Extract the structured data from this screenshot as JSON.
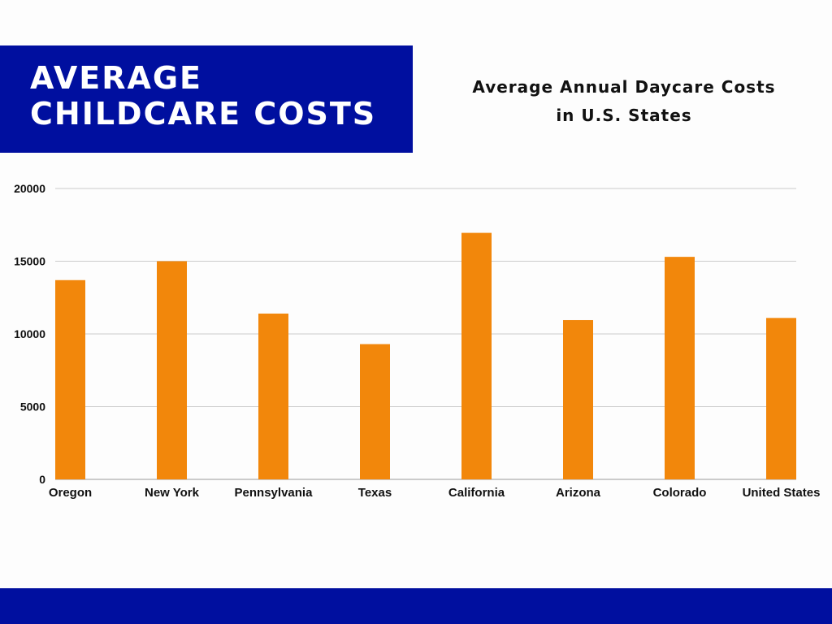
{
  "banner": {
    "line1": "AVERAGE",
    "line2": "CHILDCARE COSTS",
    "color": "#000f9f"
  },
  "chart_title": {
    "line1": "Average Annual Daycare Costs",
    "line2": "in U.S. States"
  },
  "footer": {
    "color": "#000f9f"
  },
  "chart_data": {
    "type": "bar",
    "title": "Average Annual Daycare Costs in U.S. States",
    "xlabel": "",
    "ylabel": "",
    "categories": [
      "Oregon",
      "New York",
      "Pennsylvania",
      "Texas",
      "California",
      "Arizona",
      "Colorado",
      "United States"
    ],
    "values": [
      13700,
      15000,
      11400,
      9300,
      16950,
      10950,
      15300,
      11100
    ],
    "ylim": [
      0,
      20000
    ],
    "yticks": [
      0,
      5000,
      10000,
      15000,
      20000
    ],
    "grid": true,
    "legend": "none",
    "bar_color": "#f2870b",
    "grid_color": "#cccccc"
  }
}
